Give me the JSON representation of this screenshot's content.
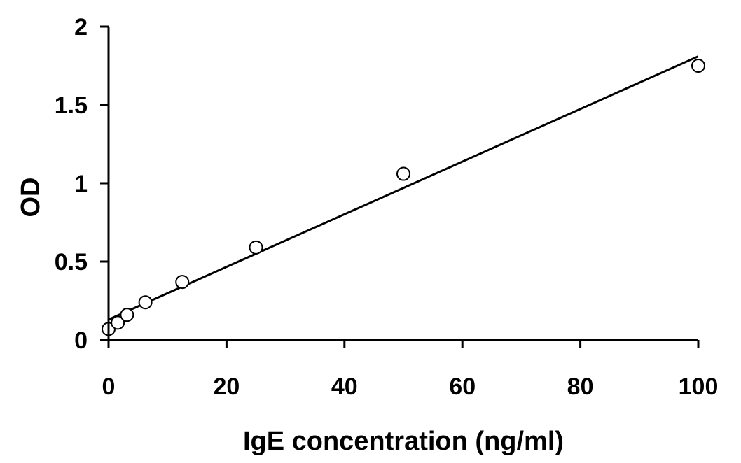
{
  "chart_data": {
    "type": "scatter",
    "title": "",
    "xlabel": "IgE concentration (ng/ml)",
    "ylabel": "OD",
    "xlim": [
      0,
      100
    ],
    "ylim": [
      0,
      2
    ],
    "x_ticks": [
      0,
      20,
      40,
      60,
      80,
      100
    ],
    "y_ticks": [
      0,
      0.5,
      1,
      1.5,
      2
    ],
    "x_tick_labels": [
      "0",
      "20",
      "40",
      "60",
      "80",
      "100"
    ],
    "y_tick_labels": [
      "0",
      "0.5",
      "1",
      "1.5",
      "2"
    ],
    "grid": false,
    "legend": "none",
    "series": [
      {
        "marker": "open-circle",
        "x": [
          0,
          1.56,
          3.13,
          6.25,
          12.5,
          25,
          50,
          100
        ],
        "y": [
          0.07,
          0.11,
          0.16,
          0.24,
          0.37,
          0.59,
          1.06,
          1.75
        ]
      }
    ],
    "trendline": {
      "type": "linear",
      "x": [
        0,
        100
      ],
      "y": [
        0.13,
        1.81
      ]
    },
    "colors": {
      "axis": "#000000",
      "marker_fill": "#ffffff",
      "marker_stroke": "#000000",
      "line": "#000000"
    }
  }
}
